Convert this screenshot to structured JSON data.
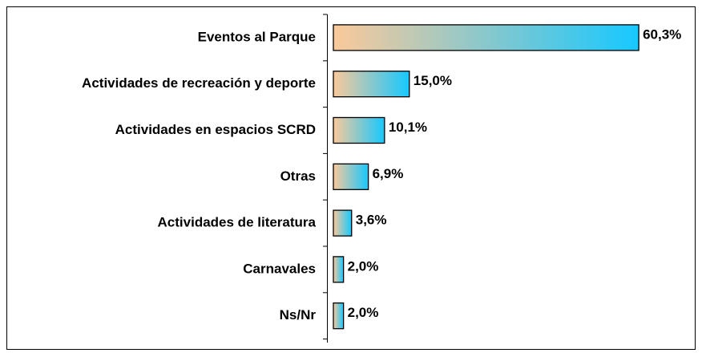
{
  "chart_data": {
    "type": "barh",
    "categories": [
      "Eventos al Parque",
      "Actividades de recreación y deporte",
      "Actividades en espacios SCRD",
      "Otras",
      "Actividades de literatura",
      "Carnavales",
      "Ns/Nr"
    ],
    "values": [
      60.3,
      15.0,
      10.1,
      6.9,
      3.6,
      2.0,
      2.0
    ],
    "value_labels": [
      "60,3%",
      "15,0%",
      "10,1%",
      "6,9%",
      "3,6%",
      "2,0%",
      "2,0%"
    ],
    "colors": [
      "#fbc99a",
      "#16c8ff"
    ]
  }
}
